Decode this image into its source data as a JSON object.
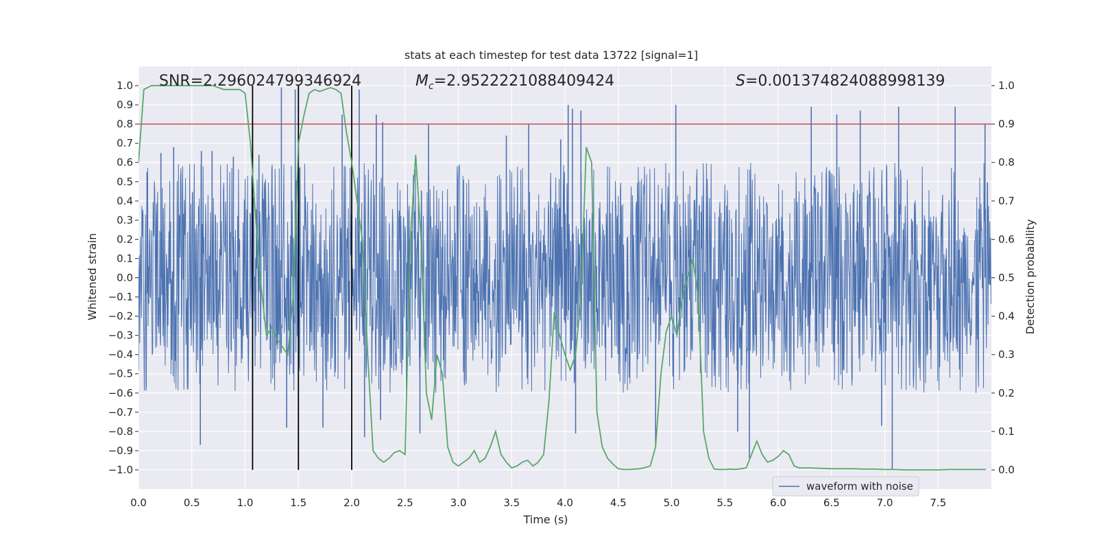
{
  "chart_data": {
    "type": "line",
    "title": "stats at each timestep for test data 13722 [signal=1]",
    "xlabel": "Time (s)",
    "ylabel_left": "Whitened strain",
    "ylabel_right": "Detection probability",
    "xlim": [
      0.0,
      8.0
    ],
    "ylim_left": [
      -1.1,
      1.1
    ],
    "ylim_right": [
      -0.05,
      1.05
    ],
    "x_ticks": [
      "0.0",
      "0.5",
      "1.0",
      "1.5",
      "2.0",
      "2.5",
      "3.0",
      "3.5",
      "4.0",
      "4.5",
      "5.0",
      "5.5",
      "6.0",
      "6.5",
      "7.0",
      "7.5"
    ],
    "y_ticks_left": [
      "-1.0",
      "-0.9",
      "-0.8",
      "-0.7",
      "-0.6",
      "-0.5",
      "-0.4",
      "-0.3",
      "-0.2",
      "-0.1",
      "0.0",
      "0.1",
      "0.2",
      "0.3",
      "0.4",
      "0.5",
      "0.6",
      "0.7",
      "0.8",
      "0.9",
      "1.0"
    ],
    "y_ticks_right": [
      "0.0",
      "0.1",
      "0.2",
      "0.3",
      "0.4",
      "0.5",
      "0.6",
      "0.7",
      "0.8",
      "0.9",
      "1.0"
    ],
    "grid": true,
    "legend": {
      "position": "lower-right",
      "entries": [
        "waveform with noise"
      ]
    },
    "annotations": {
      "snr_label": "SNR=2.296024799346924",
      "mc_symbol": "M",
      "mc_sub": "c",
      "mc_value": "=2.9522221088409424",
      "s_symbol": "S",
      "s_value": "=0.001374824088998139"
    },
    "threshold": {
      "axis": "right",
      "value": 0.9,
      "color": "#c44e52"
    },
    "event_markers_x": [
      1.07,
      1.5,
      2.0
    ],
    "waveform": {
      "name": "waveform with noise",
      "color": "#4c72b0",
      "sample_rate_hz": 256,
      "envelope": {
        "core_abs": 0.4,
        "typical_peak_abs": 0.6
      },
      "outliers": [
        {
          "x": 0.08,
          "y": 0.55
        },
        {
          "x": 0.21,
          "y": 0.65
        },
        {
          "x": 0.33,
          "y": 0.68
        },
        {
          "x": 0.58,
          "y": -0.87
        },
        {
          "x": 0.59,
          "y": 0.66
        },
        {
          "x": 0.69,
          "y": 0.66
        },
        {
          "x": 0.89,
          "y": 0.63
        },
        {
          "x": 1.07,
          "y": -0.8
        },
        {
          "x": 1.13,
          "y": 0.64
        },
        {
          "x": 1.34,
          "y": 0.99
        },
        {
          "x": 1.39,
          "y": -0.78
        },
        {
          "x": 1.47,
          "y": 0.98
        },
        {
          "x": 1.73,
          "y": -0.78
        },
        {
          "x": 1.91,
          "y": 0.85
        },
        {
          "x": 2.07,
          "y": 0.98
        },
        {
          "x": 2.12,
          "y": -0.83
        },
        {
          "x": 2.23,
          "y": 0.85
        },
        {
          "x": 2.27,
          "y": -0.74
        },
        {
          "x": 2.29,
          "y": 0.81
        },
        {
          "x": 2.64,
          "y": -0.81
        },
        {
          "x": 2.72,
          "y": 0.8
        },
        {
          "x": 3.45,
          "y": 0.74
        },
        {
          "x": 3.66,
          "y": 0.8
        },
        {
          "x": 3.96,
          "y": 0.72
        },
        {
          "x": 4.03,
          "y": 0.9
        },
        {
          "x": 4.07,
          "y": 0.88
        },
        {
          "x": 4.1,
          "y": -0.81
        },
        {
          "x": 4.15,
          "y": 0.87
        },
        {
          "x": 4.85,
          "y": -0.87
        },
        {
          "x": 5.04,
          "y": 0.9
        },
        {
          "x": 5.62,
          "y": -0.8
        },
        {
          "x": 5.73,
          "y": -0.94
        },
        {
          "x": 6.31,
          "y": 0.89
        },
        {
          "x": 6.55,
          "y": 0.85
        },
        {
          "x": 6.77,
          "y": 0.87
        },
        {
          "x": 6.97,
          "y": -0.77
        },
        {
          "x": 7.07,
          "y": -1.0
        },
        {
          "x": 7.13,
          "y": 0.89
        },
        {
          "x": 7.66,
          "y": 0.89
        },
        {
          "x": 7.94,
          "y": 0.8
        }
      ]
    },
    "detection_probability": {
      "axis": "right",
      "color": "#55a868",
      "x": [
        0.0,
        0.05,
        0.12,
        0.2,
        0.3,
        0.4,
        0.5,
        0.6,
        0.7,
        0.8,
        0.9,
        0.95,
        1.0,
        1.05,
        1.1,
        1.15,
        1.2,
        1.25,
        1.3,
        1.35,
        1.4,
        1.45,
        1.5,
        1.55,
        1.6,
        1.65,
        1.7,
        1.75,
        1.8,
        1.85,
        1.9,
        1.95,
        2.0,
        2.05,
        2.1,
        2.15,
        2.2,
        2.25,
        2.3,
        2.35,
        2.4,
        2.45,
        2.5,
        2.55,
        2.6,
        2.65,
        2.7,
        2.75,
        2.8,
        2.85,
        2.9,
        2.95,
        3.0,
        3.05,
        3.1,
        3.15,
        3.2,
        3.25,
        3.3,
        3.35,
        3.4,
        3.45,
        3.5,
        3.55,
        3.6,
        3.65,
        3.7,
        3.75,
        3.8,
        3.85,
        3.9,
        3.95,
        4.0,
        4.05,
        4.1,
        4.15,
        4.2,
        4.25,
        4.3,
        4.35,
        4.4,
        4.45,
        4.5,
        4.55,
        4.6,
        4.65,
        4.7,
        4.75,
        4.8,
        4.85,
        4.9,
        4.95,
        5.0,
        5.05,
        5.1,
        5.15,
        5.2,
        5.25,
        5.3,
        5.35,
        5.4,
        5.45,
        5.5,
        5.55,
        5.6,
        5.65,
        5.7,
        5.75,
        5.8,
        5.85,
        5.9,
        5.95,
        6.0,
        6.05,
        6.1,
        6.15,
        6.2,
        6.3,
        6.4,
        6.5,
        6.6,
        6.7,
        6.8,
        6.9,
        7.0,
        7.1,
        7.2,
        7.3,
        7.4,
        7.5,
        7.6,
        7.7,
        7.8,
        7.9,
        7.95
      ],
      "y": [
        0.8,
        0.99,
        1.0,
        1.0,
        1.0,
        1.0,
        1.0,
        1.0,
        1.0,
        0.99,
        0.99,
        0.99,
        0.98,
        0.85,
        0.65,
        0.48,
        0.35,
        0.37,
        0.34,
        0.32,
        0.3,
        0.45,
        0.85,
        0.92,
        0.98,
        0.99,
        0.985,
        0.99,
        0.995,
        0.99,
        0.98,
        0.88,
        0.8,
        0.7,
        0.6,
        0.3,
        0.05,
        0.03,
        0.02,
        0.03,
        0.045,
        0.05,
        0.04,
        0.6,
        0.82,
        0.6,
        0.2,
        0.13,
        0.3,
        0.25,
        0.06,
        0.02,
        0.01,
        0.02,
        0.03,
        0.05,
        0.02,
        0.03,
        0.06,
        0.1,
        0.04,
        0.02,
        0.005,
        0.01,
        0.02,
        0.025,
        0.01,
        0.02,
        0.04,
        0.18,
        0.41,
        0.35,
        0.3,
        0.26,
        0.3,
        0.45,
        0.84,
        0.8,
        0.15,
        0.06,
        0.03,
        0.015,
        0.003,
        0.001,
        0.001,
        0.002,
        0.003,
        0.006,
        0.01,
        0.06,
        0.25,
        0.36,
        0.4,
        0.35,
        0.45,
        0.5,
        0.55,
        0.45,
        0.1,
        0.03,
        0.002,
        0.001,
        0.001,
        0.002,
        0.001,
        0.003,
        0.005,
        0.04,
        0.075,
        0.04,
        0.02,
        0.025,
        0.035,
        0.05,
        0.04,
        0.01,
        0.005,
        0.005,
        0.004,
        0.003,
        0.003,
        0.003,
        0.002,
        0.002,
        0.001,
        0.001,
        0.0,
        0.0,
        0.0,
        0.0,
        0.001,
        0.001,
        0.001,
        0.001,
        0.001
      ]
    }
  }
}
